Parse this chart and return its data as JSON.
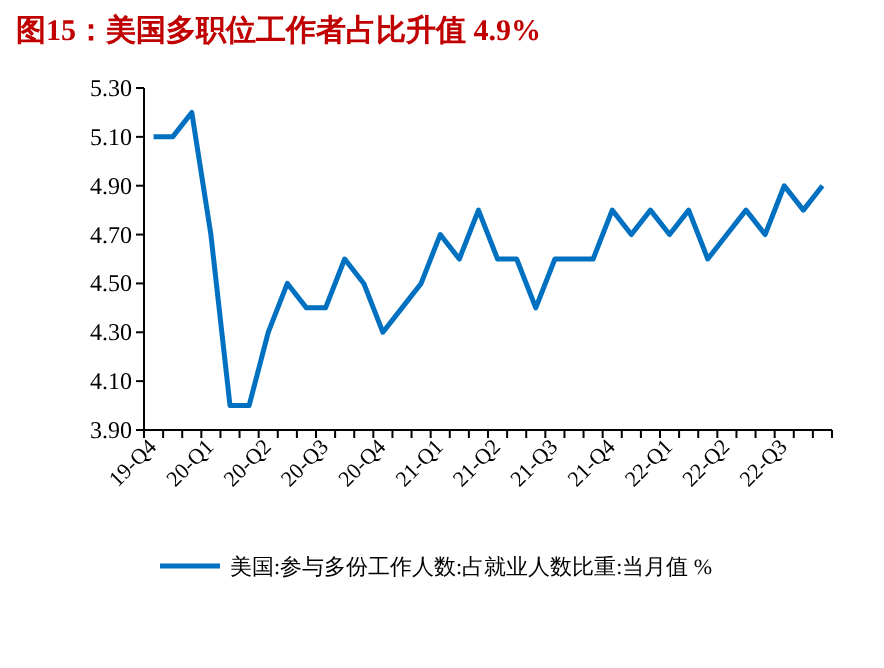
{
  "chart_data": {
    "type": "line",
    "title": "图15：美国多职位工作者占比升值 4.9%",
    "categories": [
      "19-Q4",
      null,
      null,
      "20-Q1",
      null,
      null,
      "20-Q2",
      null,
      null,
      "20-Q3",
      null,
      null,
      "20-Q4",
      null,
      null,
      "21-Q1",
      null,
      null,
      "21-Q2",
      null,
      null,
      "21-Q3",
      null,
      null,
      "21-Q4",
      null,
      null,
      "22-Q1",
      null,
      null,
      "22-Q2",
      null,
      null,
      "22-Q3",
      null,
      null
    ],
    "series": [
      {
        "name": "美国:参与多份工作人数:占就业人数比重:当月值 %",
        "color": "#0070c0",
        "values": [
          5.1,
          5.1,
          5.2,
          4.7,
          4.0,
          4.0,
          4.3,
          4.5,
          4.4,
          4.4,
          4.6,
          4.5,
          4.3,
          4.4,
          4.5,
          4.7,
          4.6,
          4.8,
          4.6,
          4.6,
          4.4,
          4.6,
          4.6,
          4.6,
          4.8,
          4.7,
          4.8,
          4.7,
          4.8,
          4.6,
          4.7,
          4.8,
          4.7,
          4.9,
          4.8,
          4.9
        ]
      }
    ],
    "ylim": [
      3.9,
      5.3
    ],
    "yticks": [
      {
        "value": 3.9,
        "label": "3.90"
      },
      {
        "value": 4.1,
        "label": "4.10"
      },
      {
        "value": 4.3,
        "label": "4.30"
      },
      {
        "value": 4.5,
        "label": "4.50"
      },
      {
        "value": 4.7,
        "label": "4.70"
      },
      {
        "value": 4.9,
        "label": "4.90"
      },
      {
        "value": 5.1,
        "label": "5.10"
      },
      {
        "value": 5.3,
        "label": "5.30"
      }
    ],
    "grid": false,
    "legend": "bottom",
    "marker": "none",
    "line_style": "solid"
  }
}
